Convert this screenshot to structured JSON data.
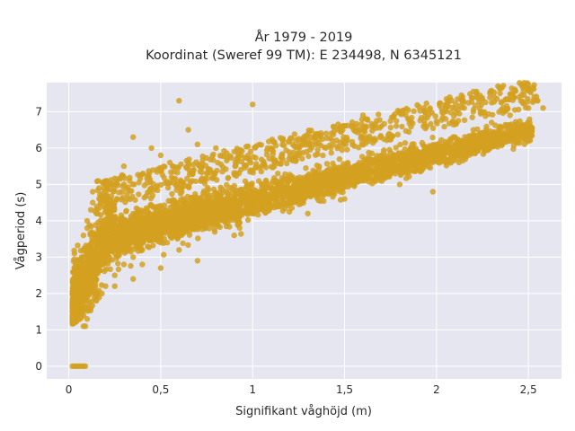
{
  "chart_data": {
    "type": "scatter",
    "title_line1": "År 1979 - 2019",
    "title_line2": "Koordinat (Sweref 99 TM): E 234498, N 6345121",
    "xlabel": "Signifikant våghöjd (m)",
    "ylabel": "Vågperiod (s)",
    "xlim": [
      -0.12,
      2.68
    ],
    "ylim": [
      -0.35,
      7.8
    ],
    "x_ticks": [
      0,
      0.5,
      1,
      1.5,
      2,
      2.5
    ],
    "x_tick_labels": [
      "0",
      "0,5",
      "1",
      "1,5",
      "2",
      "2,5"
    ],
    "y_ticks": [
      0,
      1,
      2,
      3,
      4,
      5,
      6,
      7
    ],
    "y_tick_labels": [
      "0",
      "1",
      "2",
      "3",
      "4",
      "5",
      "6",
      "7"
    ],
    "grid": true,
    "colors": {
      "points": "#d4a020",
      "plot_background": "#e5e6f0",
      "grid": "#ffffff"
    },
    "series": [
      {
        "points": [
          [
            0.02,
            1.5
          ],
          [
            0.03,
            1.4
          ],
          [
            0.04,
            1.8
          ],
          [
            0.05,
            2.2
          ],
          [
            0.05,
            1.3
          ],
          [
            0.06,
            2.6
          ],
          [
            0.07,
            3.0
          ],
          [
            0.08,
            3.6
          ],
          [
            0.08,
            1.1
          ],
          [
            0.09,
            1.1
          ],
          [
            0.1,
            4.0
          ],
          [
            0.1,
            3.8
          ],
          [
            0.12,
            4.3
          ],
          [
            0.13,
            4.5
          ],
          [
            0.15,
            4.2
          ],
          [
            0.13,
            4.8
          ],
          [
            0.12,
            1.6
          ],
          [
            0.15,
            1.8
          ],
          [
            0.18,
            2.0
          ],
          [
            0.2,
            2.2
          ],
          [
            0.25,
            2.5
          ],
          [
            0.3,
            2.8
          ],
          [
            0.35,
            3.0
          ],
          [
            0.4,
            3.2
          ],
          [
            0.5,
            3.4
          ],
          [
            0.6,
            3.6
          ],
          [
            0.7,
            3.8
          ],
          [
            0.8,
            4.0
          ],
          [
            0.9,
            4.1
          ],
          [
            1.0,
            4.2
          ],
          [
            1.1,
            4.4
          ],
          [
            1.2,
            4.5
          ],
          [
            1.3,
            4.7
          ],
          [
            1.4,
            4.9
          ],
          [
            1.5,
            5.1
          ],
          [
            1.6,
            5.3
          ],
          [
            1.7,
            5.5
          ],
          [
            1.8,
            5.7
          ],
          [
            1.9,
            5.9
          ],
          [
            2.0,
            6.1
          ],
          [
            2.1,
            6.3
          ],
          [
            2.2,
            6.5
          ],
          [
            2.3,
            6.7
          ],
          [
            2.4,
            6.9
          ],
          [
            2.5,
            7.1
          ],
          [
            2.55,
            7.3
          ],
          [
            2.58,
            7.1
          ],
          [
            2.45,
            7.4
          ],
          [
            0.2,
            5.0
          ],
          [
            0.3,
            5.5
          ],
          [
            0.35,
            6.3
          ],
          [
            0.45,
            6.0
          ],
          [
            0.5,
            5.8
          ],
          [
            0.55,
            5.6
          ],
          [
            0.6,
            7.3
          ],
          [
            0.65,
            6.5
          ],
          [
            0.7,
            6.1
          ],
          [
            0.8,
            6.0
          ],
          [
            0.9,
            5.9
          ],
          [
            1.0,
            7.2
          ],
          [
            1.1,
            6.0
          ],
          [
            1.2,
            6.2
          ],
          [
            1.4,
            6.4
          ],
          [
            1.55,
            6.5
          ],
          [
            1.6,
            6.9
          ],
          [
            1.7,
            6.6
          ],
          [
            2.05,
            6.8
          ],
          [
            2.2,
            7.0
          ],
          [
            1.98,
            4.8
          ],
          [
            1.8,
            5.0
          ],
          [
            1.5,
            4.6
          ],
          [
            0.4,
            2.8
          ],
          [
            0.6,
            3.2
          ],
          [
            0.7,
            2.9
          ],
          [
            0.5,
            2.7
          ],
          [
            0.35,
            2.4
          ],
          [
            0.25,
            2.2
          ],
          [
            0.9,
            3.6
          ],
          [
            1.3,
            4.2
          ],
          [
            0.1,
            1.3
          ],
          [
            0.02,
            0.0
          ],
          [
            0.03,
            0.0
          ],
          [
            0.04,
            0.0
          ],
          [
            0.05,
            0.0
          ],
          [
            0.06,
            0.0
          ],
          [
            0.07,
            0.0
          ],
          [
            0.08,
            0.0
          ],
          [
            0.09,
            0.0
          ]
        ]
      }
    ]
  }
}
